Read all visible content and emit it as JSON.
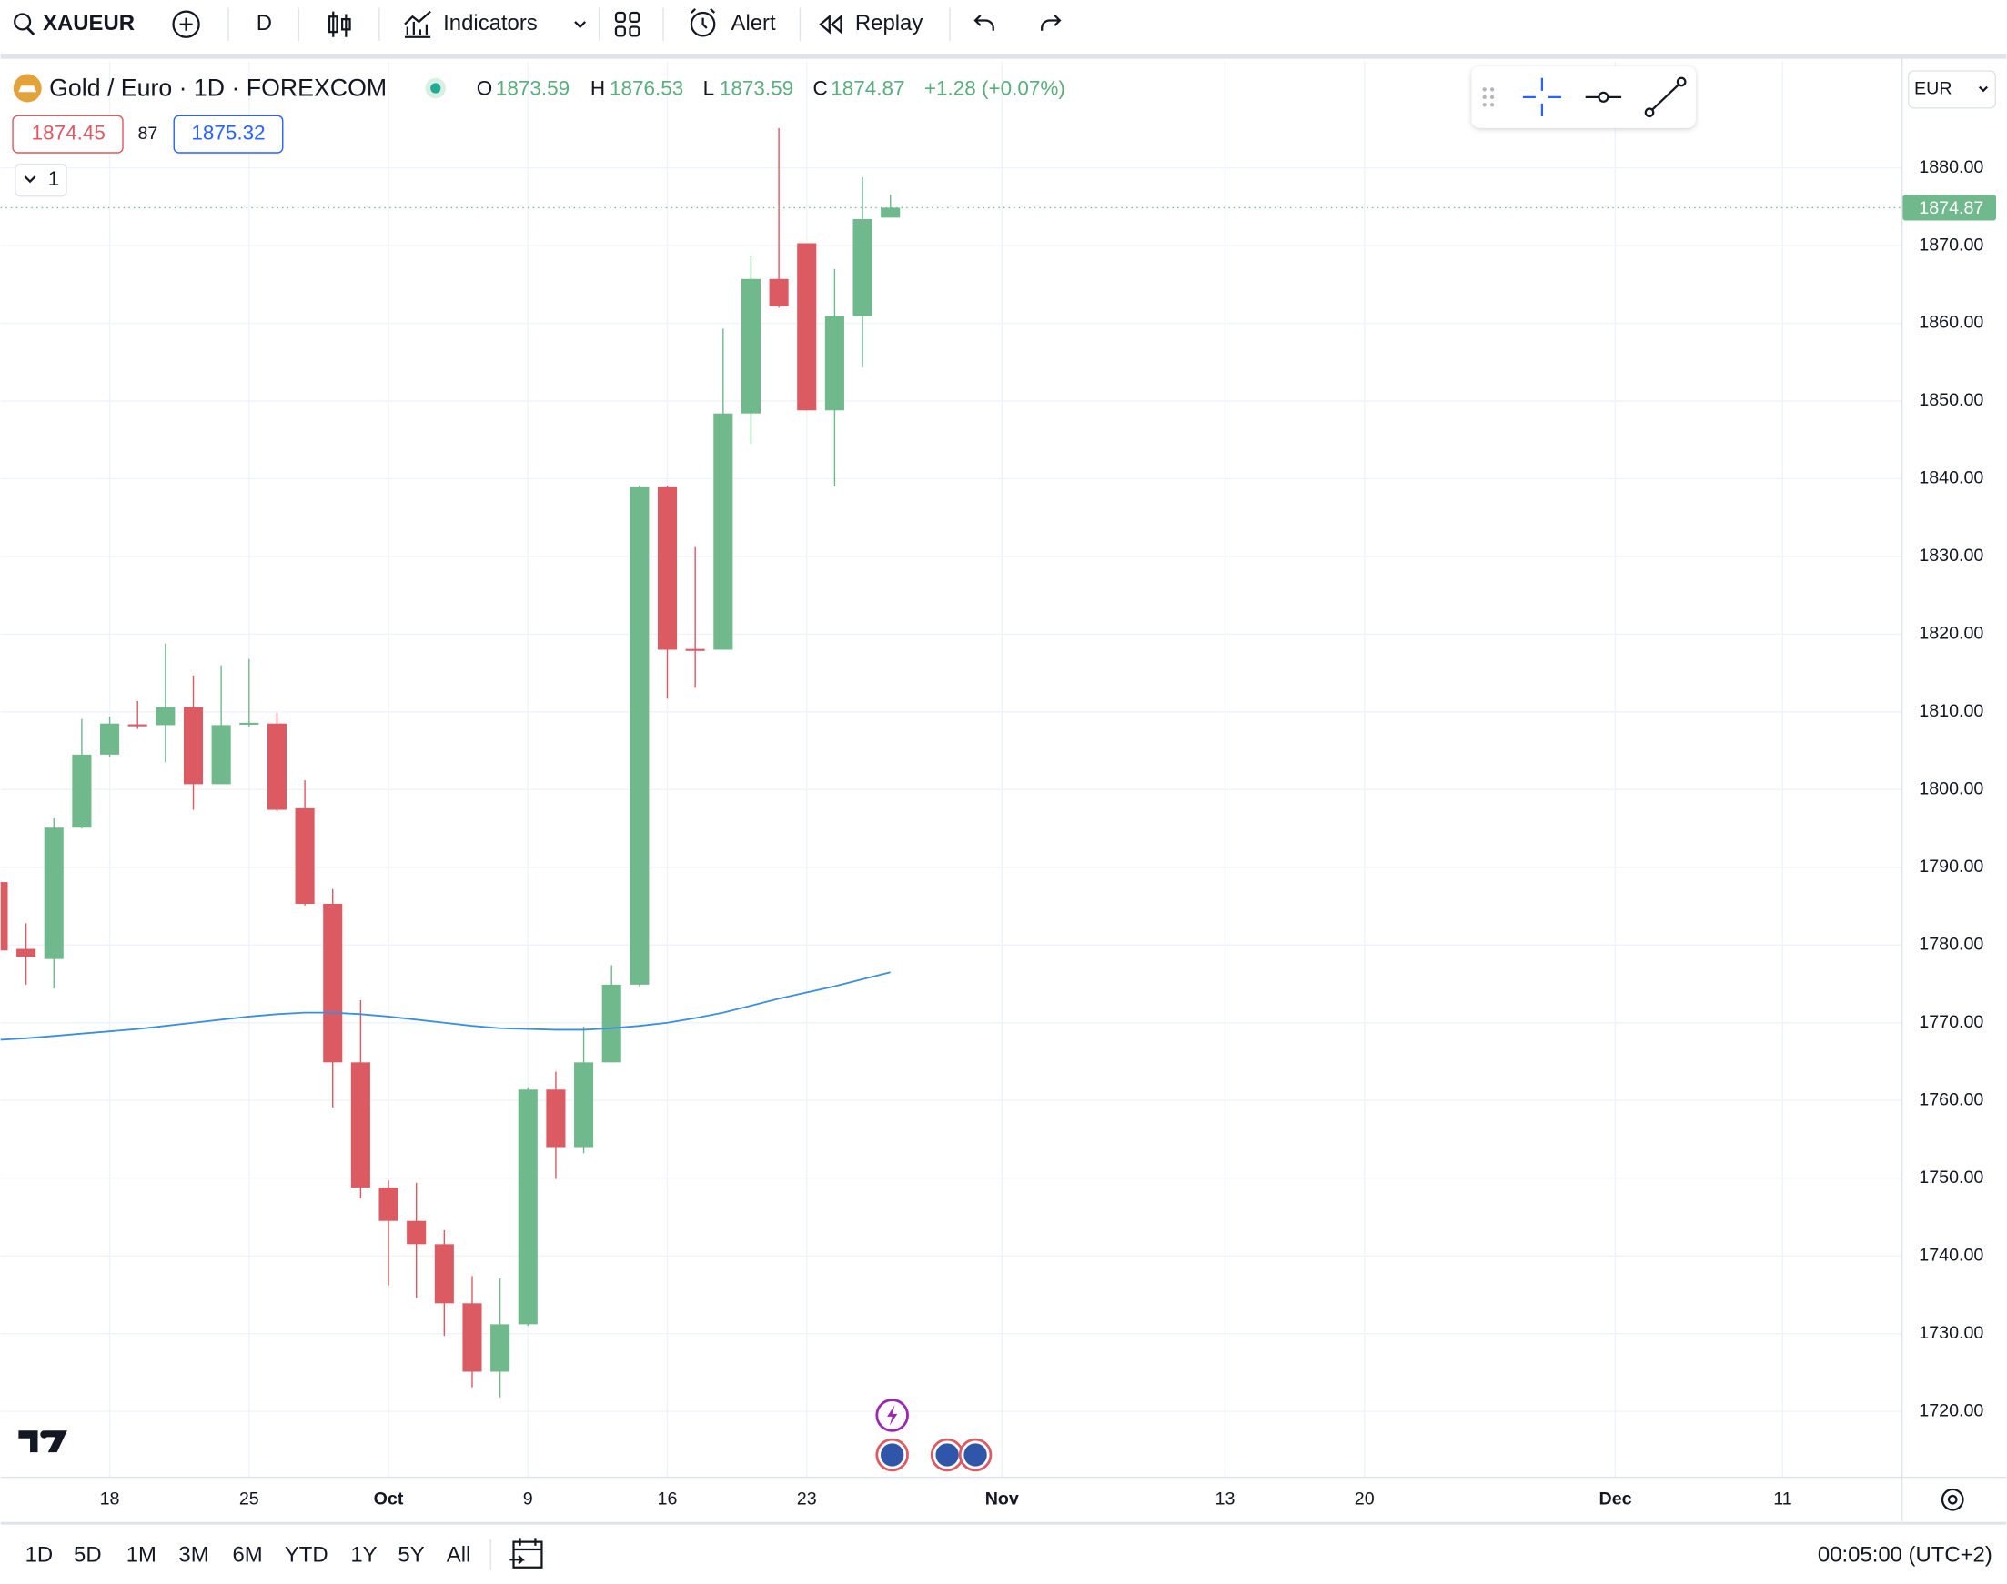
{
  "toolbar": {
    "symbol": "XAUEUR",
    "interval": "D",
    "indicators": "Indicators",
    "alert": "Alert",
    "replay": "Replay"
  },
  "quote": {
    "bid": "1874.45",
    "spread": "87",
    "ask": "1875.32",
    "collapse": "1",
    "change": "+1.28 (+0.07%)",
    "labels": [
      "O",
      "H",
      "L",
      "C"
    ]
  },
  "currency": "EUR",
  "ranges": [
    "1D",
    "5D",
    "1M",
    "3M",
    "6M",
    "YTD",
    "1Y",
    "5Y",
    "All"
  ],
  "clock": "00:05:00 (UTC+2)",
  "chart_data": {
    "type": "candlestick",
    "title": "Gold / Euro · 1D · FOREXCOM",
    "open": [
      1788.1,
      1779.5,
      1778.2,
      1795.1,
      1804.5,
      1808.4,
      1808.3,
      1810.6,
      1800.7,
      1808.4,
      1808.5,
      1797.6,
      1785.3,
      1764.9,
      1748.8,
      1744.5,
      1741.5,
      1733.9,
      1725.1,
      1731.2,
      1761.4,
      1754.0,
      1764.9,
      1774.9,
      1838.9,
      1818.1,
      1818.0,
      1848.4,
      1865.7,
      1870.3,
      1848.8,
      1860.9,
      1873.59
    ],
    "high": [
      1789.0,
      1782.8,
      1796.3,
      1809.1,
      1809.4,
      1811.4,
      1818.8,
      1814.7,
      1816.0,
      1816.8,
      1809.9,
      1801.2,
      1787.2,
      1772.9,
      1749.7,
      1749.4,
      1743.3,
      1737.4,
      1737.1,
      1761.7,
      1763.7,
      1769.5,
      1777.4,
      1839.1,
      1839.1,
      1831.2,
      1859.3,
      1868.7,
      1885.1,
      1870.3,
      1867.0,
      1878.8,
      1876.53
    ],
    "low": [
      1778.0,
      1774.9,
      1774.4,
      1795.0,
      1804.2,
      1807.8,
      1803.5,
      1797.4,
      1800.7,
      1808.1,
      1797.2,
      1785.1,
      1759.1,
      1747.4,
      1736.2,
      1734.6,
      1729.7,
      1723.1,
      1721.8,
      1731.0,
      1749.9,
      1753.2,
      1764.9,
      1774.7,
      1811.7,
      1813.1,
      1818.0,
      1844.5,
      1862.0,
      1848.8,
      1839.0,
      1854.3,
      1873.59
    ],
    "close": [
      1779.3,
      1778.5,
      1795.1,
      1804.5,
      1808.5,
      1808.2,
      1810.6,
      1800.7,
      1808.3,
      1808.6,
      1797.4,
      1785.3,
      1764.9,
      1748.8,
      1744.5,
      1741.5,
      1733.9,
      1725.1,
      1731.2,
      1761.4,
      1754.0,
      1764.9,
      1774.9,
      1838.9,
      1818.0,
      1817.9,
      1848.4,
      1865.7,
      1862.2,
      1848.8,
      1860.9,
      1873.4,
      1874.87
    ],
    "up_color": "#70b98c",
    "down_color": "#dc5a62",
    "overlay": {
      "color": "#3b8fe0",
      "values": [
        1767.8,
        1768.0,
        1768.3,
        1768.6,
        1768.9,
        1769.2,
        1769.6,
        1770.0,
        1770.4,
        1770.8,
        1771.1,
        1771.3,
        1771.3,
        1771.1,
        1770.8,
        1770.4,
        1770.0,
        1769.6,
        1769.3,
        1769.2,
        1769.1,
        1769.1,
        1769.3,
        1769.6,
        1770.0,
        1770.6,
        1771.3,
        1772.2,
        1773.1,
        1773.9,
        1774.7,
        1775.6,
        1776.5
      ]
    },
    "xlim": [
      0.09,
      68.26
    ],
    "xticks": [
      {
        "value": 4,
        "label": "18"
      },
      {
        "value": 9,
        "label": "25"
      },
      {
        "value": 14,
        "label": "Oct"
      },
      {
        "value": 19,
        "label": "9"
      },
      {
        "value": 24,
        "label": "16"
      },
      {
        "value": 29,
        "label": "23"
      },
      {
        "value": 36,
        "label": "Nov"
      },
      {
        "value": 44,
        "label": "13"
      },
      {
        "value": 49,
        "label": "20"
      },
      {
        "value": 58,
        "label": "Dec"
      },
      {
        "value": 64,
        "label": "11"
      }
    ],
    "ylim": [
      1711.6,
      1893.7
    ],
    "yticks": [
      {
        "value": 1720,
        "label": "1720.00"
      },
      {
        "value": 1730,
        "label": "1730.00"
      },
      {
        "value": 1740,
        "label": "1740.00"
      },
      {
        "value": 1750,
        "label": "1750.00"
      },
      {
        "value": 1760,
        "label": "1760.00"
      },
      {
        "value": 1770,
        "label": "1770.00"
      },
      {
        "value": 1780,
        "label": "1780.00"
      },
      {
        "value": 1790,
        "label": "1790.00"
      },
      {
        "value": 1800,
        "label": "1800.00"
      },
      {
        "value": 1810,
        "label": "1810.00"
      },
      {
        "value": 1820,
        "label": "1820.00"
      },
      {
        "value": 1830,
        "label": "1830.00"
      },
      {
        "value": 1840,
        "label": "1840.00"
      },
      {
        "value": 1850,
        "label": "1850.00"
      },
      {
        "value": 1860,
        "label": "1860.00"
      },
      {
        "value": 1870,
        "label": "1870.00"
      },
      {
        "value": 1880,
        "label": "1880.00"
      }
    ],
    "grid": true
  }
}
